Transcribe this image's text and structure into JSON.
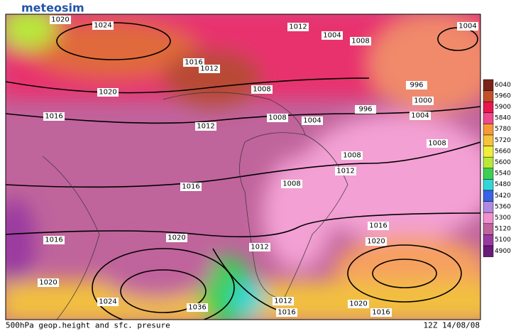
{
  "header": {
    "logo": "meteosim"
  },
  "footer": {
    "caption": "500hPa geop.height and sfc. presure",
    "date": "12Z 14/08/08"
  },
  "isobar_labels": [
    1020,
    1024,
    1016,
    1012,
    1020,
    1016,
    1008,
    1012,
    1004,
    1008,
    996,
    1000,
    1004,
    996,
    1012,
    1008,
    1004,
    1008,
    1008,
    1012,
    1016,
    1008,
    1016,
    1020,
    1016,
    1020,
    1012,
    1020,
    1024,
    1036,
    1012,
    1016,
    1020,
    1016,
    1004
  ],
  "colorbar": {
    "levels": [
      6040,
      5960,
      5900,
      5840,
      5780,
      5720,
      5660,
      5600,
      5540,
      5480,
      5420,
      5360,
      5300,
      5120,
      5100,
      4900
    ],
    "colors": [
      "#7a2418",
      "#c4502a",
      "#e8174e",
      "#f04a8c",
      "#f59a3a",
      "#f6c43a",
      "#f0ee3a",
      "#b8e83a",
      "#3ccf52",
      "#33d6d6",
      "#3a62e8",
      "#b08ae0",
      "#f090d0",
      "#c0649c",
      "#9a3aa0",
      "#6a1a7a"
    ]
  }
}
